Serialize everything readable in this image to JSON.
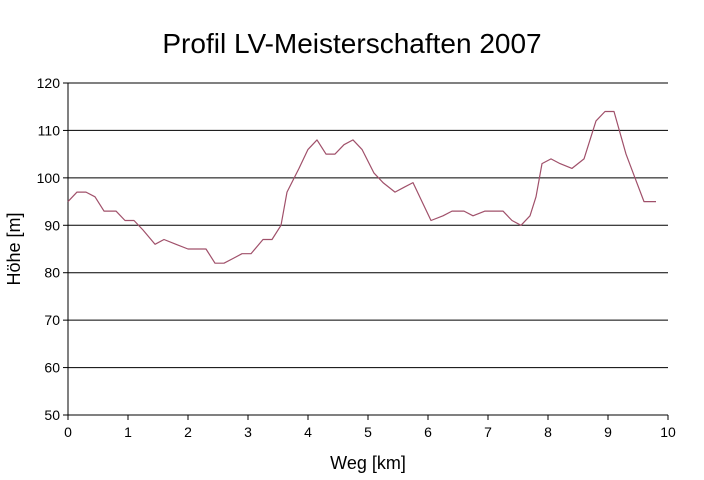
{
  "chart_data": {
    "type": "line",
    "title": "Profil LV-Meisterschaften 2007",
    "xlabel": "Weg [km]",
    "ylabel": "Höhe [m]",
    "xlim": [
      0,
      10
    ],
    "ylim": [
      50,
      120
    ],
    "xticks": [
      "0",
      "1",
      "2",
      "3",
      "4",
      "5",
      "6",
      "7",
      "8",
      "9",
      "10"
    ],
    "yticks": [
      "50",
      "60",
      "70",
      "80",
      "90",
      "100",
      "110",
      "120"
    ],
    "grid": "horizontal",
    "line_color": "#a0506a",
    "series": [
      {
        "x": [
          0,
          0.15,
          0.3,
          0.45,
          0.6,
          0.8,
          0.95,
          1.1,
          1.25,
          1.45,
          1.6,
          1.8,
          2.0,
          2.15,
          2.3,
          2.45,
          2.6,
          2.75,
          2.9,
          3.05,
          3.25,
          3.4,
          3.55,
          3.65,
          3.85,
          4.0,
          4.15,
          4.3,
          4.45,
          4.6,
          4.75,
          4.9,
          5.1,
          5.25,
          5.45,
          5.6,
          5.75,
          5.9,
          6.05,
          6.25,
          6.4,
          6.6,
          6.75,
          6.95,
          7.1,
          7.25,
          7.4,
          7.55,
          7.7,
          7.8,
          7.9,
          8.05,
          8.2,
          8.4,
          8.6,
          8.8,
          8.95,
          9.1,
          9.3,
          9.45,
          9.6,
          9.8
        ],
        "y": [
          95,
          97,
          97,
          96,
          93,
          93,
          91,
          91,
          89,
          86,
          87,
          86,
          85,
          85,
          85,
          82,
          82,
          83,
          84,
          84,
          87,
          87,
          90,
          97,
          102,
          106,
          108,
          105,
          105,
          107,
          108,
          106,
          101,
          99,
          97,
          98,
          99,
          95,
          91,
          92,
          93,
          93,
          92,
          93,
          93,
          93,
          91,
          90,
          92,
          96,
          103,
          104,
          103,
          102,
          104,
          112,
          114,
          114,
          105,
          100,
          95,
          95
        ]
      }
    ]
  }
}
